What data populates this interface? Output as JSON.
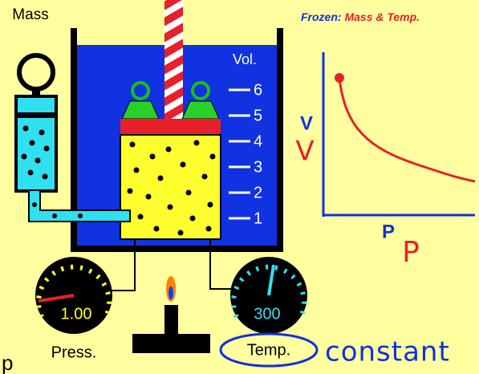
{
  "mass_label": "Mass",
  "status": {
    "prefix": "Frozen:",
    "items": "Mass & Temp."
  },
  "volume_scale": {
    "title": "Vol.",
    "marks": [
      6,
      5,
      4,
      3,
      2,
      1
    ]
  },
  "gauges": [
    {
      "reading": "1.00",
      "label": "Press."
    },
    {
      "reading": "300",
      "label": "Temp."
    }
  ],
  "graph": {
    "y_axis": "V",
    "x_axis": "P"
  },
  "annotations": {
    "v": "V",
    "p": "P",
    "note": "constant",
    "corner": "p"
  }
}
